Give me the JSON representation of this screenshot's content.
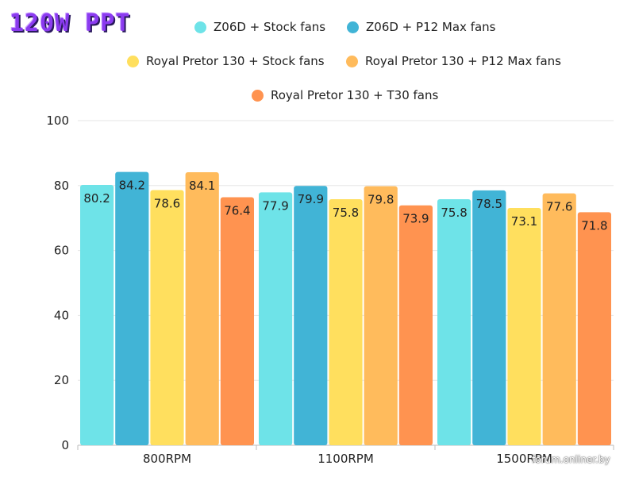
{
  "title": "120W PPT",
  "watermark": "forum.onliner.by",
  "chart_data": {
    "type": "bar",
    "categories": [
      "800RPM",
      "1100RPM",
      "1500RPM"
    ],
    "series": [
      {
        "name": "Z06D + Stock fans",
        "color": "#6ee3e8",
        "values": [
          80.2,
          77.9,
          75.8
        ]
      },
      {
        "name": "Z06D + P12 Max fans",
        "color": "#41b4d6",
        "values": [
          84.2,
          79.9,
          78.5
        ]
      },
      {
        "name": "Royal Pretor 130 + Stock fans",
        "color": "#ffdf5e",
        "values": [
          78.6,
          75.8,
          73.1
        ]
      },
      {
        "name": "Royal Pretor 130 + P12 Max fans",
        "color": "#ffbb5c",
        "values": [
          84.1,
          79.8,
          77.6
        ]
      },
      {
        "name": "Royal Pretor 130 + T30 fans",
        "color": "#ff9350",
        "values": [
          76.4,
          73.9,
          71.8
        ]
      }
    ],
    "ylim": [
      0,
      100
    ],
    "yticks": [
      0,
      20,
      40,
      60,
      80,
      100
    ],
    "xlabel": "",
    "ylabel": "",
    "legend_position": "top",
    "grid": true
  }
}
